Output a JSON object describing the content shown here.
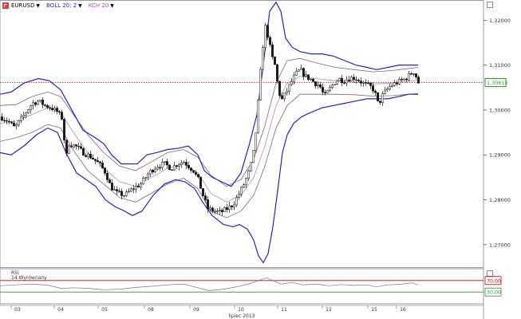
{
  "toolbar": {
    "symbol": "EURUSD",
    "indicator1": "BOLL 20; 2",
    "indicator2": "KCH 20",
    "colors": {
      "symbol": "#222222",
      "indicator1": "#2323cc",
      "indicator2": "#c040c0"
    }
  },
  "window_icons": {
    "main": "maximize-icon",
    "rsi": "maximize-icon"
  },
  "price_axis": {
    "ticks": [
      "1,32000",
      "1,31000",
      "1,30000",
      "1,29000",
      "1,28000",
      "1,27000"
    ],
    "current_price": "1,30612",
    "current_price_color": "#2a9a2a",
    "price_line_color": "#cc0000"
  },
  "rsi": {
    "name": "RSI",
    "params": "14 Wyrownany",
    "ticks": [
      "70,00",
      "30,00"
    ],
    "level_colors": {
      "upper": "#cc0000",
      "lower": "#2a9a2a"
    }
  },
  "x_axis": {
    "days": [
      "03",
      "04",
      "05",
      "08",
      "09",
      "10",
      "11",
      "12",
      "15",
      "16"
    ],
    "month_label": "lipiec 2013"
  },
  "chart_data": {
    "type": "candlestick",
    "symbol": "EURUSD",
    "ylim": [
      1.265,
      1.3245
    ],
    "current_price": 1.30612,
    "close_path": [
      [
        0,
        1.2985
      ],
      [
        10,
        1.2975
      ],
      [
        18,
        1.296
      ],
      [
        24,
        1.2975
      ],
      [
        32,
        1.2995
      ],
      [
        40,
        1.3015
      ],
      [
        48,
        1.302
      ],
      [
        56,
        1.301
      ],
      [
        64,
        1.3005
      ],
      [
        72,
        1.2995
      ],
      [
        78,
        1.298
      ],
      [
        82,
        1.289
      ],
      [
        86,
        1.2925
      ],
      [
        94,
        1.292
      ],
      [
        104,
        1.2905
      ],
      [
        114,
        1.2895
      ],
      [
        124,
        1.288
      ],
      [
        132,
        1.286
      ],
      [
        138,
        1.283
      ],
      [
        146,
        1.2815
      ],
      [
        156,
        1.281
      ],
      [
        166,
        1.2825
      ],
      [
        176,
        1.2835
      ],
      [
        186,
        1.286
      ],
      [
        196,
        1.2875
      ],
      [
        206,
        1.288
      ],
      [
        214,
        1.287
      ],
      [
        222,
        1.288
      ],
      [
        230,
        1.2885
      ],
      [
        236,
        1.2875
      ],
      [
        242,
        1.2865
      ],
      [
        248,
        1.2845
      ],
      [
        254,
        1.281
      ],
      [
        260,
        1.278
      ],
      [
        268,
        1.2775
      ],
      [
        276,
        1.2772
      ],
      [
        284,
        1.278
      ],
      [
        292,
        1.279
      ],
      [
        298,
        1.281
      ],
      [
        304,
        1.283
      ],
      [
        310,
        1.2855
      ],
      [
        316,
        1.289
      ],
      [
        320,
        1.295
      ],
      [
        324,
        1.304
      ],
      [
        328,
        1.313
      ],
      [
        332,
        1.3185
      ],
      [
        336,
        1.316
      ],
      [
        340,
        1.312
      ],
      [
        344,
        1.31
      ],
      [
        348,
        1.305
      ],
      [
        352,
        1.302
      ],
      [
        358,
        1.304
      ],
      [
        364,
        1.306
      ],
      [
        370,
        1.308
      ],
      [
        376,
        1.309
      ],
      [
        382,
        1.3075
      ],
      [
        388,
        1.307
      ],
      [
        394,
        1.306
      ],
      [
        400,
        1.3055
      ],
      [
        406,
        1.303
      ],
      [
        412,
        1.3045
      ],
      [
        418,
        1.306
      ],
      [
        424,
        1.307
      ],
      [
        430,
        1.3065
      ],
      [
        436,
        1.307
      ],
      [
        442,
        1.3072
      ],
      [
        448,
        1.3068
      ],
      [
        454,
        1.306
      ],
      [
        460,
        1.3055
      ],
      [
        466,
        1.305
      ],
      [
        470,
        1.3035
      ],
      [
        474,
        1.301
      ],
      [
        478,
        1.303
      ],
      [
        484,
        1.3045
      ],
      [
        490,
        1.3055
      ],
      [
        496,
        1.306
      ],
      [
        502,
        1.3065
      ],
      [
        508,
        1.307
      ],
      [
        514,
        1.308
      ],
      [
        518,
        1.3085
      ],
      [
        521,
        1.3075
      ],
      [
        524,
        1.3061
      ]
    ],
    "bollinger_upper": [
      [
        0,
        1.3035
      ],
      [
        14,
        1.304
      ],
      [
        30,
        1.306
      ],
      [
        48,
        1.307
      ],
      [
        62,
        1.3065
      ],
      [
        76,
        1.3045
      ],
      [
        90,
        1.3
      ],
      [
        104,
        1.2955
      ],
      [
        118,
        1.294
      ],
      [
        130,
        1.2925
      ],
      [
        140,
        1.29
      ],
      [
        152,
        1.288
      ],
      [
        162,
        1.288
      ],
      [
        172,
        1.288
      ],
      [
        184,
        1.29
      ],
      [
        196,
        1.2905
      ],
      [
        210,
        1.2912
      ],
      [
        224,
        1.2915
      ],
      [
        236,
        1.292
      ],
      [
        248,
        1.29
      ],
      [
        256,
        1.2865
      ],
      [
        266,
        1.285
      ],
      [
        278,
        1.284
      ],
      [
        290,
        1.283
      ],
      [
        302,
        1.286
      ],
      [
        312,
        1.292
      ],
      [
        322,
        1.299
      ],
      [
        330,
        1.31
      ],
      [
        338,
        1.322
      ],
      [
        346,
        1.324
      ],
      [
        352,
        1.322
      ],
      [
        358,
        1.316
      ],
      [
        366,
        1.314
      ],
      [
        376,
        1.313
      ],
      [
        390,
        1.3125
      ],
      [
        404,
        1.3125
      ],
      [
        418,
        1.312
      ],
      [
        432,
        1.311
      ],
      [
        446,
        1.31
      ],
      [
        460,
        1.3095
      ],
      [
        472,
        1.309
      ],
      [
        486,
        1.3095
      ],
      [
        500,
        1.31
      ],
      [
        512,
        1.31
      ],
      [
        524,
        1.31
      ]
    ],
    "bollinger_lower": [
      [
        0,
        1.2905
      ],
      [
        14,
        1.29
      ],
      [
        30,
        1.292
      ],
      [
        46,
        1.2945
      ],
      [
        60,
        1.296
      ],
      [
        72,
        1.295
      ],
      [
        84,
        1.29
      ],
      [
        96,
        1.286
      ],
      [
        108,
        1.2845
      ],
      [
        120,
        1.283
      ],
      [
        132,
        1.28
      ],
      [
        144,
        1.2785
      ],
      [
        156,
        1.2775
      ],
      [
        166,
        1.2765
      ],
      [
        178,
        1.2775
      ],
      [
        192,
        1.281
      ],
      [
        206,
        1.2835
      ],
      [
        220,
        1.2845
      ],
      [
        232,
        1.284
      ],
      [
        244,
        1.2825
      ],
      [
        254,
        1.2795
      ],
      [
        266,
        1.2765
      ],
      [
        280,
        1.2745
      ],
      [
        292,
        1.274
      ],
      [
        300,
        1.2745
      ],
      [
        310,
        1.2735
      ],
      [
        318,
        1.271
      ],
      [
        324,
        1.2675
      ],
      [
        330,
        1.266
      ],
      [
        336,
        1.268
      ],
      [
        342,
        1.274
      ],
      [
        348,
        1.282
      ],
      [
        354,
        1.2905
      ],
      [
        360,
        1.2945
      ],
      [
        368,
        1.297
      ],
      [
        378,
        1.2985
      ],
      [
        390,
        1.2995
      ],
      [
        404,
        1.3005
      ],
      [
        418,
        1.301
      ],
      [
        432,
        1.3015
      ],
      [
        446,
        1.302
      ],
      [
        460,
        1.3025
      ],
      [
        472,
        1.3025
      ],
      [
        486,
        1.3025
      ],
      [
        500,
        1.303
      ],
      [
        512,
        1.3035
      ],
      [
        524,
        1.3035
      ]
    ],
    "bollinger_middle": [
      [
        0,
        1.297
      ],
      [
        20,
        1.2975
      ],
      [
        40,
        1.299
      ],
      [
        60,
        1.3005
      ],
      [
        76,
        1.2995
      ],
      [
        92,
        1.295
      ],
      [
        110,
        1.2905
      ],
      [
        130,
        1.287
      ],
      [
        150,
        1.284
      ],
      [
        170,
        1.283
      ],
      [
        190,
        1.285
      ],
      [
        210,
        1.287
      ],
      [
        230,
        1.288
      ],
      [
        248,
        1.286
      ],
      [
        264,
        1.2815
      ],
      [
        284,
        1.2795
      ],
      [
        302,
        1.281
      ],
      [
        318,
        1.285
      ],
      [
        332,
        1.292
      ],
      [
        346,
        1.301
      ],
      [
        360,
        1.306
      ],
      [
        376,
        1.3075
      ],
      [
        396,
        1.307
      ],
      [
        420,
        1.3065
      ],
      [
        444,
        1.3062
      ],
      [
        468,
        1.3058
      ],
      [
        492,
        1.306
      ],
      [
        524,
        1.3066
      ]
    ],
    "keltner_upper": [
      [
        0,
        1.301
      ],
      [
        20,
        1.3012
      ],
      [
        40,
        1.303
      ],
      [
        60,
        1.304
      ],
      [
        76,
        1.303
      ],
      [
        92,
        1.299
      ],
      [
        110,
        1.2945
      ],
      [
        130,
        1.2905
      ],
      [
        150,
        1.2875
      ],
      [
        170,
        1.2865
      ],
      [
        190,
        1.2885
      ],
      [
        210,
        1.2905
      ],
      [
        230,
        1.2912
      ],
      [
        248,
        1.2895
      ],
      [
        264,
        1.2855
      ],
      [
        284,
        1.283
      ],
      [
        302,
        1.2845
      ],
      [
        318,
        1.289
      ],
      [
        332,
        1.2965
      ],
      [
        346,
        1.306
      ],
      [
        360,
        1.311
      ],
      [
        376,
        1.3115
      ],
      [
        396,
        1.3105
      ],
      [
        420,
        1.3095
      ],
      [
        444,
        1.309
      ],
      [
        468,
        1.3085
      ],
      [
        492,
        1.3088
      ],
      [
        524,
        1.3095
      ]
    ],
    "keltner_lower": [
      [
        0,
        1.293
      ],
      [
        20,
        1.2938
      ],
      [
        40,
        1.295
      ],
      [
        60,
        1.2968
      ],
      [
        76,
        1.296
      ],
      [
        92,
        1.291
      ],
      [
        110,
        1.2865
      ],
      [
        130,
        1.2835
      ],
      [
        150,
        1.2805
      ],
      [
        170,
        1.2795
      ],
      [
        190,
        1.2815
      ],
      [
        210,
        1.2835
      ],
      [
        230,
        1.2848
      ],
      [
        248,
        1.2825
      ],
      [
        264,
        1.2775
      ],
      [
        284,
        1.276
      ],
      [
        302,
        1.2775
      ],
      [
        318,
        1.281
      ],
      [
        332,
        1.2875
      ],
      [
        346,
        1.296
      ],
      [
        360,
        1.301
      ],
      [
        376,
        1.3035
      ],
      [
        396,
        1.3035
      ],
      [
        420,
        1.3035
      ],
      [
        444,
        1.3034
      ],
      [
        468,
        1.3031
      ],
      [
        492,
        1.3032
      ],
      [
        524,
        1.3037
      ]
    ],
    "rsi_path": [
      [
        0,
        52
      ],
      [
        20,
        55
      ],
      [
        40,
        58
      ],
      [
        60,
        54
      ],
      [
        78,
        42
      ],
      [
        90,
        45
      ],
      [
        110,
        43
      ],
      [
        130,
        38
      ],
      [
        150,
        40
      ],
      [
        170,
        46
      ],
      [
        190,
        50
      ],
      [
        210,
        55
      ],
      [
        230,
        58
      ],
      [
        248,
        45
      ],
      [
        262,
        35
      ],
      [
        280,
        40
      ],
      [
        300,
        50
      ],
      [
        314,
        60
      ],
      [
        326,
        72
      ],
      [
        334,
        80
      ],
      [
        342,
        70
      ],
      [
        352,
        58
      ],
      [
        366,
        63
      ],
      [
        380,
        55
      ],
      [
        396,
        58
      ],
      [
        412,
        52
      ],
      [
        428,
        56
      ],
      [
        444,
        53
      ],
      [
        460,
        55
      ],
      [
        472,
        48
      ],
      [
        486,
        55
      ],
      [
        502,
        57
      ],
      [
        516,
        62
      ],
      [
        524,
        55
      ]
    ]
  }
}
